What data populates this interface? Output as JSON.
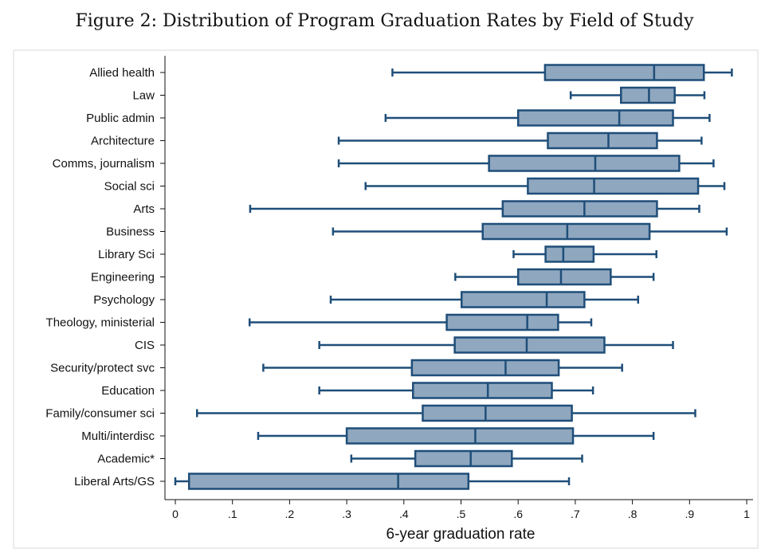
{
  "figure": {
    "title": "Figure 2: Distribution of Program Graduation Rates by Field of Study"
  },
  "chart_data": {
    "type": "boxplot",
    "title": "Figure 2: Distribution of Program Graduation Rates by Field of Study",
    "xlabel": "6-year graduation rate",
    "ylabel": "",
    "xlim": [
      0,
      1
    ],
    "xticks": [
      0,
      0.1,
      0.2,
      0.3,
      0.4,
      0.5,
      0.6,
      0.7,
      0.8,
      0.9,
      1
    ],
    "xtick_labels": [
      "0",
      ".1",
      ".2",
      ".3",
      ".4",
      ".5",
      ".6",
      ".7",
      ".8",
      ".9",
      "1"
    ],
    "grid": false,
    "legend": "none",
    "colors": {
      "box_fill": "#8fa7bf",
      "box_stroke": "#1f4e79",
      "frame": "#d9d9d9"
    },
    "categories": [
      "Allied health",
      "Law",
      "Public admin",
      "Architecture",
      "Comms, journalism",
      "Social sci",
      "Arts",
      "Business",
      "Library Sci",
      "Engineering",
      "Psychology",
      "Theology, ministerial",
      "CIS",
      "Security/protect svc",
      "Education",
      "Family/consumer sci",
      "Multi/interdisc",
      "Academic*",
      "Liberal Arts/GS"
    ],
    "boxes": [
      {
        "category": "Allied health",
        "min": 0.38,
        "q1": 0.647,
        "median": 0.838,
        "q3": 0.925,
        "max": 0.974
      },
      {
        "category": "Law",
        "min": 0.692,
        "q1": 0.78,
        "median": 0.829,
        "q3": 0.874,
        "max": 0.926
      },
      {
        "category": "Public admin",
        "min": 0.368,
        "q1": 0.6,
        "median": 0.777,
        "q3": 0.871,
        "max": 0.935
      },
      {
        "category": "Architecture",
        "min": 0.286,
        "q1": 0.652,
        "median": 0.758,
        "q3": 0.843,
        "max": 0.921
      },
      {
        "category": "Comms, journalism",
        "min": 0.286,
        "q1": 0.549,
        "median": 0.735,
        "q3": 0.882,
        "max": 0.942
      },
      {
        "category": "Social sci",
        "min": 0.333,
        "q1": 0.617,
        "median": 0.733,
        "q3": 0.915,
        "max": 0.961
      },
      {
        "category": "Arts",
        "min": 0.131,
        "q1": 0.573,
        "median": 0.716,
        "q3": 0.843,
        "max": 0.917
      },
      {
        "category": "Business",
        "min": 0.276,
        "q1": 0.538,
        "median": 0.686,
        "q3": 0.83,
        "max": 0.965
      },
      {
        "category": "Library Sci",
        "min": 0.592,
        "q1": 0.648,
        "median": 0.679,
        "q3": 0.732,
        "max": 0.842
      },
      {
        "category": "Engineering",
        "min": 0.49,
        "q1": 0.6,
        "median": 0.675,
        "q3": 0.762,
        "max": 0.837
      },
      {
        "category": "Psychology",
        "min": 0.272,
        "q1": 0.501,
        "median": 0.65,
        "q3": 0.716,
        "max": 0.81
      },
      {
        "category": "Theology, ministerial",
        "min": 0.13,
        "q1": 0.475,
        "median": 0.616,
        "q3": 0.67,
        "max": 0.728
      },
      {
        "category": "CIS",
        "min": 0.252,
        "q1": 0.489,
        "median": 0.615,
        "q3": 0.751,
        "max": 0.871
      },
      {
        "category": "Security/protect svc",
        "min": 0.154,
        "q1": 0.414,
        "median": 0.578,
        "q3": 0.671,
        "max": 0.782
      },
      {
        "category": "Education",
        "min": 0.252,
        "q1": 0.416,
        "median": 0.547,
        "q3": 0.659,
        "max": 0.731
      },
      {
        "category": "Family/consumer sci",
        "min": 0.038,
        "q1": 0.433,
        "median": 0.543,
        "q3": 0.694,
        "max": 0.91
      },
      {
        "category": "Multi/interdisc",
        "min": 0.145,
        "q1": 0.3,
        "median": 0.525,
        "q3": 0.696,
        "max": 0.837
      },
      {
        "category": "Academic*",
        "min": 0.308,
        "q1": 0.42,
        "median": 0.517,
        "q3": 0.589,
        "max": 0.712
      },
      {
        "category": "Liberal Arts/GS",
        "min": 0.0,
        "q1": 0.024,
        "median": 0.39,
        "q3": 0.513,
        "max": 0.689
      }
    ]
  }
}
